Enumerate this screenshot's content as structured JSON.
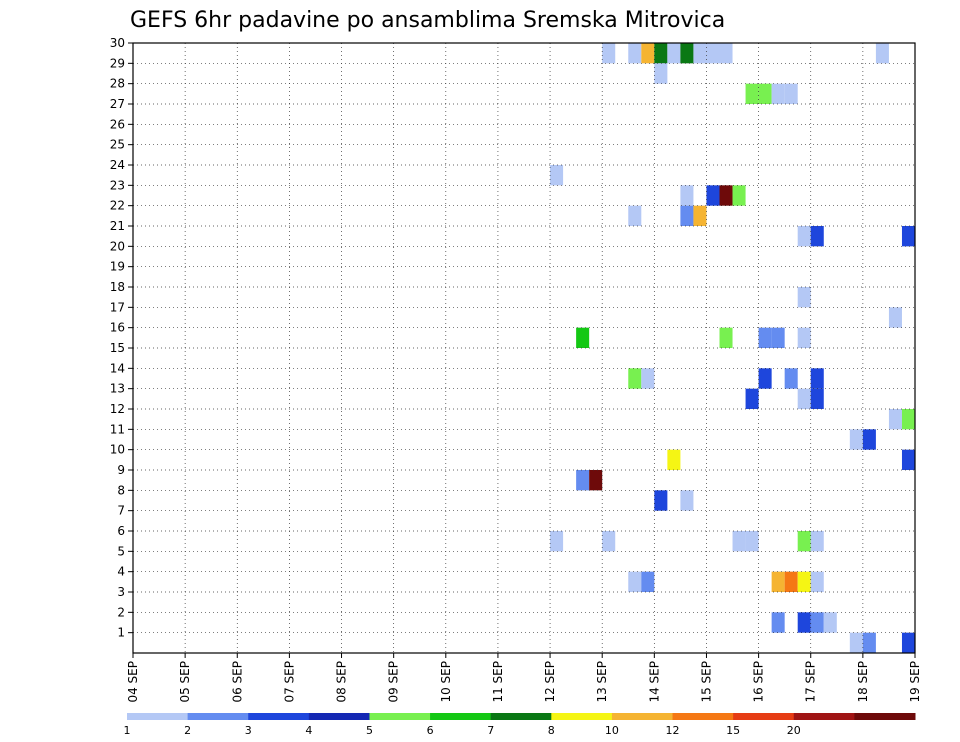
{
  "chart_data": {
    "type": "heatmap",
    "title": "GEFS 6hr padavine po ansamblima Sremska Mitrovica",
    "xlabel": "",
    "ylabel": "",
    "x_ticks": [
      "04 SEP",
      "05 SEP",
      "06 SEP",
      "07 SEP",
      "08 SEP",
      "09 SEP",
      "10 SEP",
      "11 SEP",
      "12 SEP",
      "13 SEP",
      "14 SEP",
      "15 SEP",
      "16 SEP",
      "17 SEP",
      "18 SEP",
      "19 SEP"
    ],
    "x_range_days": [
      0,
      15
    ],
    "y_ticks": [
      "1",
      "2",
      "3",
      "4",
      "5",
      "6",
      "7",
      "8",
      "9",
      "10",
      "11",
      "12",
      "13",
      "14",
      "15",
      "16",
      "17",
      "18",
      "19",
      "20",
      "21",
      "22",
      "23",
      "24",
      "25",
      "26",
      "27",
      "28",
      "29",
      "30"
    ],
    "y_range": [
      0,
      30
    ],
    "grid": true,
    "colorbar": {
      "levels": [
        "1",
        "2",
        "3",
        "4",
        "5",
        "6",
        "7",
        "8",
        "10",
        "12",
        "15",
        "20"
      ],
      "colors": [
        "#b4c8f5",
        "#648cf0",
        "#1e46dc",
        "#1428b4",
        "#78f050",
        "#14c814",
        "#0a7814",
        "#f5f514",
        "#f5b432",
        "#f57814",
        "#e63c14",
        "#a01414",
        "#6e0a0a"
      ]
    },
    "cells": [
      {
        "t": 9.0,
        "m": 30,
        "c": 0
      },
      {
        "t": 9.5,
        "m": 30,
        "c": 0
      },
      {
        "t": 9.75,
        "m": 30,
        "c": 8
      },
      {
        "t": 10.0,
        "m": 30,
        "c": 6
      },
      {
        "t": 10.25,
        "m": 30,
        "c": 0
      },
      {
        "t": 10.5,
        "m": 30,
        "c": 6
      },
      {
        "t": 10.75,
        "m": 30,
        "c": 0
      },
      {
        "t": 11.0,
        "m": 30,
        "c": 0
      },
      {
        "t": 11.25,
        "m": 30,
        "c": 0
      },
      {
        "t": 14.25,
        "m": 30,
        "c": 0
      },
      {
        "t": 10.0,
        "m": 29,
        "c": 0
      },
      {
        "t": 11.75,
        "m": 28,
        "c": 4
      },
      {
        "t": 12.0,
        "m": 28,
        "c": 4
      },
      {
        "t": 12.25,
        "m": 28,
        "c": 0
      },
      {
        "t": 12.5,
        "m": 28,
        "c": 0
      },
      {
        "t": 8.0,
        "m": 24,
        "c": 0
      },
      {
        "t": 10.5,
        "m": 23,
        "c": 0
      },
      {
        "t": 11.0,
        "m": 23,
        "c": 2
      },
      {
        "t": 11.25,
        "m": 23,
        "c": 12
      },
      {
        "t": 11.5,
        "m": 23,
        "c": 4
      },
      {
        "t": 9.5,
        "m": 22,
        "c": 0
      },
      {
        "t": 10.5,
        "m": 22,
        "c": 1
      },
      {
        "t": 10.75,
        "m": 22,
        "c": 8
      },
      {
        "t": 12.75,
        "m": 21,
        "c": 0
      },
      {
        "t": 13.0,
        "m": 21,
        "c": 2
      },
      {
        "t": 14.75,
        "m": 21,
        "c": 2
      },
      {
        "t": 12.75,
        "m": 18,
        "c": 0
      },
      {
        "t": 14.5,
        "m": 17,
        "c": 0
      },
      {
        "t": 8.5,
        "m": 16,
        "c": 5
      },
      {
        "t": 11.25,
        "m": 16,
        "c": 4
      },
      {
        "t": 12.0,
        "m": 16,
        "c": 1
      },
      {
        "t": 12.25,
        "m": 16,
        "c": 1
      },
      {
        "t": 12.75,
        "m": 16,
        "c": 0
      },
      {
        "t": 9.5,
        "m": 14,
        "c": 4
      },
      {
        "t": 9.75,
        "m": 14,
        "c": 0
      },
      {
        "t": 12.0,
        "m": 14,
        "c": 2
      },
      {
        "t": 12.5,
        "m": 14,
        "c": 1
      },
      {
        "t": 13.0,
        "m": 14,
        "c": 2
      },
      {
        "t": 11.75,
        "m": 13,
        "c": 2
      },
      {
        "t": 12.75,
        "m": 13,
        "c": 0
      },
      {
        "t": 13.0,
        "m": 13,
        "c": 2
      },
      {
        "t": 14.5,
        "m": 12,
        "c": 0
      },
      {
        "t": 14.75,
        "m": 12,
        "c": 4
      },
      {
        "t": 13.75,
        "m": 11,
        "c": 0
      },
      {
        "t": 14.0,
        "m": 11,
        "c": 2
      },
      {
        "t": 10.25,
        "m": 10,
        "c": 7
      },
      {
        "t": 14.75,
        "m": 10,
        "c": 2
      },
      {
        "t": 8.5,
        "m": 9,
        "c": 1
      },
      {
        "t": 8.75,
        "m": 9,
        "c": 12
      },
      {
        "t": 10.0,
        "m": 8,
        "c": 2
      },
      {
        "t": 10.5,
        "m": 8,
        "c": 0
      },
      {
        "t": 8.0,
        "m": 6,
        "c": 0
      },
      {
        "t": 9.0,
        "m": 6,
        "c": 0
      },
      {
        "t": 11.5,
        "m": 6,
        "c": 0
      },
      {
        "t": 11.75,
        "m": 6,
        "c": 0
      },
      {
        "t": 12.75,
        "m": 6,
        "c": 4
      },
      {
        "t": 13.0,
        "m": 6,
        "c": 0
      },
      {
        "t": 9.5,
        "m": 4,
        "c": 0
      },
      {
        "t": 9.75,
        "m": 4,
        "c": 1
      },
      {
        "t": 12.25,
        "m": 4,
        "c": 8
      },
      {
        "t": 12.5,
        "m": 4,
        "c": 9
      },
      {
        "t": 12.75,
        "m": 4,
        "c": 7
      },
      {
        "t": 13.0,
        "m": 4,
        "c": 0
      },
      {
        "t": 12.25,
        "m": 2,
        "c": 1
      },
      {
        "t": 12.75,
        "m": 2,
        "c": 2
      },
      {
        "t": 13.0,
        "m": 2,
        "c": 1
      },
      {
        "t": 13.25,
        "m": 2,
        "c": 0
      },
      {
        "t": 13.75,
        "m": 1,
        "c": 0
      },
      {
        "t": 14.0,
        "m": 1,
        "c": 1
      },
      {
        "t": 14.75,
        "m": 1,
        "c": 2
      }
    ]
  }
}
